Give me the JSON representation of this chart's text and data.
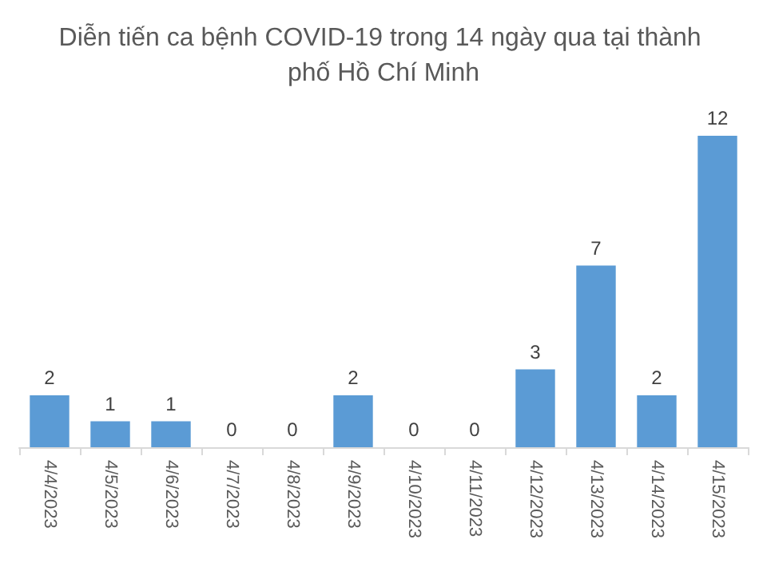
{
  "chart_data": {
    "type": "bar",
    "title": "Diễn tiến ca bệnh COVID-19 trong 14 ngày qua tại thành phố Hồ Chí Minh",
    "categories": [
      "4/4/2023",
      "4/5/2023",
      "4/6/2023",
      "4/7/2023",
      "4/8/2023",
      "4/9/2023",
      "4/10/2023",
      "4/11/2023",
      "4/12/2023",
      "4/13/2023",
      "4/14/2023",
      "4/15/2023"
    ],
    "values": [
      2,
      1,
      1,
      0,
      0,
      2,
      0,
      0,
      3,
      7,
      2,
      12
    ],
    "color": "#5b9bd5",
    "data_labels": true
  }
}
